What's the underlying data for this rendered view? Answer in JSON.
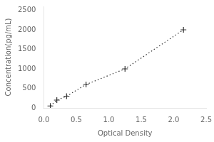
{
  "chart_data": {
    "type": "line",
    "x_label": "Optical Density",
    "y_label": "Concentration(pg/mL)",
    "x": [
      0.1,
      0.2,
      0.35,
      0.65,
      1.25,
      2.15
    ],
    "values": [
      50,
      200,
      300,
      600,
      1000,
      2000
    ],
    "color": "#333333",
    "marker": "plus",
    "line_style": "dotted",
    "xlim": [
      0,
      2.5
    ],
    "ylim": [
      0,
      2600
    ],
    "xticks": [
      {
        "value": 0,
        "label": "0.0"
      },
      0.5,
      {
        "value": 1,
        "label": "1.0"
      },
      1.5,
      {
        "value": 2,
        "label": "2.0"
      },
      2.5
    ],
    "yticks": [
      0,
      500,
      1000,
      1500,
      2000,
      2500
    ],
    "grid": false
  }
}
